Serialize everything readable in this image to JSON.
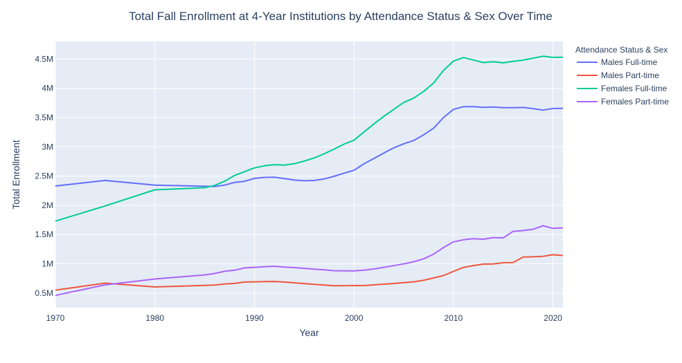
{
  "chart_data": {
    "type": "line",
    "title": "Total Fall Enrollment at 4-Year Institutions by Attendance Status & Sex Over Time",
    "xlabel": "Year",
    "ylabel": "Total Enrollment",
    "xlim": [
      1970,
      2021
    ],
    "ylim": [
      250000,
      4800000
    ],
    "x_ticks": [
      1970,
      1980,
      1990,
      2000,
      2010,
      2020
    ],
    "y_ticks": [
      500000,
      1000000,
      1500000,
      2000000,
      2500000,
      3000000,
      3500000,
      4000000,
      4500000
    ],
    "y_tick_labels": [
      "0.5M",
      "1M",
      "1.5M",
      "2M",
      "2.5M",
      "3M",
      "3.5M",
      "4M",
      "4.5M"
    ],
    "grid": true,
    "legend": {
      "title": "Attendance Status & Sex",
      "placement": "right"
    },
    "series": [
      {
        "name": "Males Full-time",
        "color": "#636efa",
        "x": [
          1970,
          1975,
          1980,
          1985,
          1986,
          1987,
          1988,
          1989,
          1990,
          1991,
          1992,
          1993,
          1994,
          1995,
          1996,
          1997,
          1998,
          1999,
          2000,
          2001,
          2002,
          2003,
          2004,
          2005,
          2006,
          2007,
          2008,
          2009,
          2010,
          2011,
          2012,
          2013,
          2014,
          2015,
          2016,
          2017,
          2018,
          2019,
          2020,
          2021
        ],
        "y": [
          2330000,
          2425000,
          2345000,
          2325000,
          2320000,
          2345000,
          2390000,
          2410000,
          2460000,
          2478000,
          2480000,
          2457000,
          2432000,
          2420000,
          2425000,
          2450000,
          2495000,
          2548000,
          2598000,
          2708000,
          2800000,
          2893000,
          2982000,
          3050000,
          3108000,
          3205000,
          3318000,
          3500000,
          3640000,
          3685000,
          3685000,
          3675000,
          3680000,
          3668000,
          3668000,
          3672000,
          3652000,
          3628000,
          3655000,
          3657000
        ]
      },
      {
        "name": "Males Part-time",
        "color": "#ef553b",
        "x": [
          1970,
          1975,
          1980,
          1985,
          1986,
          1987,
          1988,
          1989,
          1990,
          1991,
          1992,
          1993,
          1994,
          1995,
          1996,
          1997,
          1998,
          1999,
          2000,
          2001,
          2002,
          2003,
          2004,
          2005,
          2006,
          2007,
          2008,
          2009,
          2010,
          2011,
          2012,
          2013,
          2014,
          2015,
          2016,
          2017,
          2018,
          2019,
          2020,
          2021
        ],
        "y": [
          550000,
          670000,
          605000,
          630000,
          638000,
          655000,
          665000,
          688000,
          692000,
          695000,
          698000,
          688000,
          675000,
          662000,
          650000,
          638000,
          625000,
          625000,
          628000,
          628000,
          640000,
          652000,
          664000,
          678000,
          692000,
          718000,
          758000,
          800000,
          870000,
          938000,
          970000,
          995000,
          998000,
          1018000,
          1022000,
          1115000,
          1120000,
          1128000,
          1155000,
          1142000
        ],
        "note": ""
      },
      {
        "name": "Females Full-time",
        "color": "#00cc96",
        "x": [
          1970,
          1975,
          1980,
          1985,
          1986,
          1987,
          1988,
          1989,
          1990,
          1991,
          1992,
          1993,
          1994,
          1995,
          1996,
          1997,
          1998,
          1999,
          2000,
          2001,
          2002,
          2003,
          2004,
          2005,
          2006,
          2007,
          2008,
          2009,
          2010,
          2011,
          2012,
          2013,
          2014,
          2015,
          2016,
          2017,
          2018,
          2019,
          2020,
          2021
        ],
        "y": [
          1730000,
          1990000,
          2265000,
          2300000,
          2340000,
          2410000,
          2510000,
          2575000,
          2640000,
          2675000,
          2695000,
          2688000,
          2710000,
          2755000,
          2810000,
          2880000,
          2960000,
          3045000,
          3112000,
          3250000,
          3390000,
          3520000,
          3640000,
          3758000,
          3832000,
          3945000,
          4090000,
          4305000,
          4465000,
          4525000,
          4485000,
          4440000,
          4455000,
          4435000,
          4460000,
          4482000,
          4515000,
          4548000,
          4528000,
          4532000
        ]
      },
      {
        "name": "Females Part-time",
        "color": "#ab63fa",
        "x": [
          1970,
          1975,
          1980,
          1985,
          1986,
          1987,
          1988,
          1989,
          1990,
          1991,
          1992,
          1993,
          1994,
          1995,
          1996,
          1997,
          1998,
          1999,
          2000,
          2001,
          2002,
          2003,
          2004,
          2005,
          2006,
          2007,
          2008,
          2009,
          2010,
          2011,
          2012,
          2013,
          2014,
          2015,
          2016,
          2017,
          2018,
          2019,
          2020,
          2021
        ],
        "y": [
          460000,
          640000,
          740000,
          810000,
          835000,
          872000,
          890000,
          930000,
          940000,
          950000,
          958000,
          945000,
          935000,
          922000,
          910000,
          898000,
          882000,
          880000,
          880000,
          890000,
          912000,
          940000,
          968000,
          998000,
          1035000,
          1085000,
          1165000,
          1278000,
          1375000,
          1410000,
          1428000,
          1420000,
          1448000,
          1442000,
          1555000,
          1568000,
          1590000,
          1650000,
          1605000,
          1615000
        ]
      }
    ]
  }
}
